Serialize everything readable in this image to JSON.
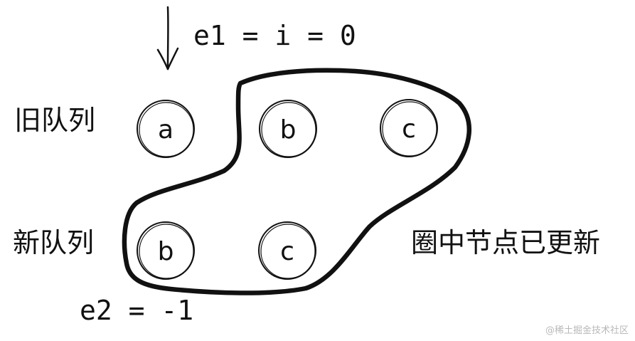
{
  "labels": {
    "old_queue": "旧队列",
    "new_queue": "新队列",
    "circled_note": "圈中节点已更新",
    "e1_pointer": "e1 = i = 0",
    "e2_pointer": "e2 = -1"
  },
  "old_queue_nodes": [
    "a",
    "b",
    "c"
  ],
  "new_queue_nodes": [
    "b",
    "c"
  ],
  "watermark": "@稀土掘金技术社区",
  "colors": {
    "ink": "#111111",
    "watermark": "#b8b8b8"
  }
}
